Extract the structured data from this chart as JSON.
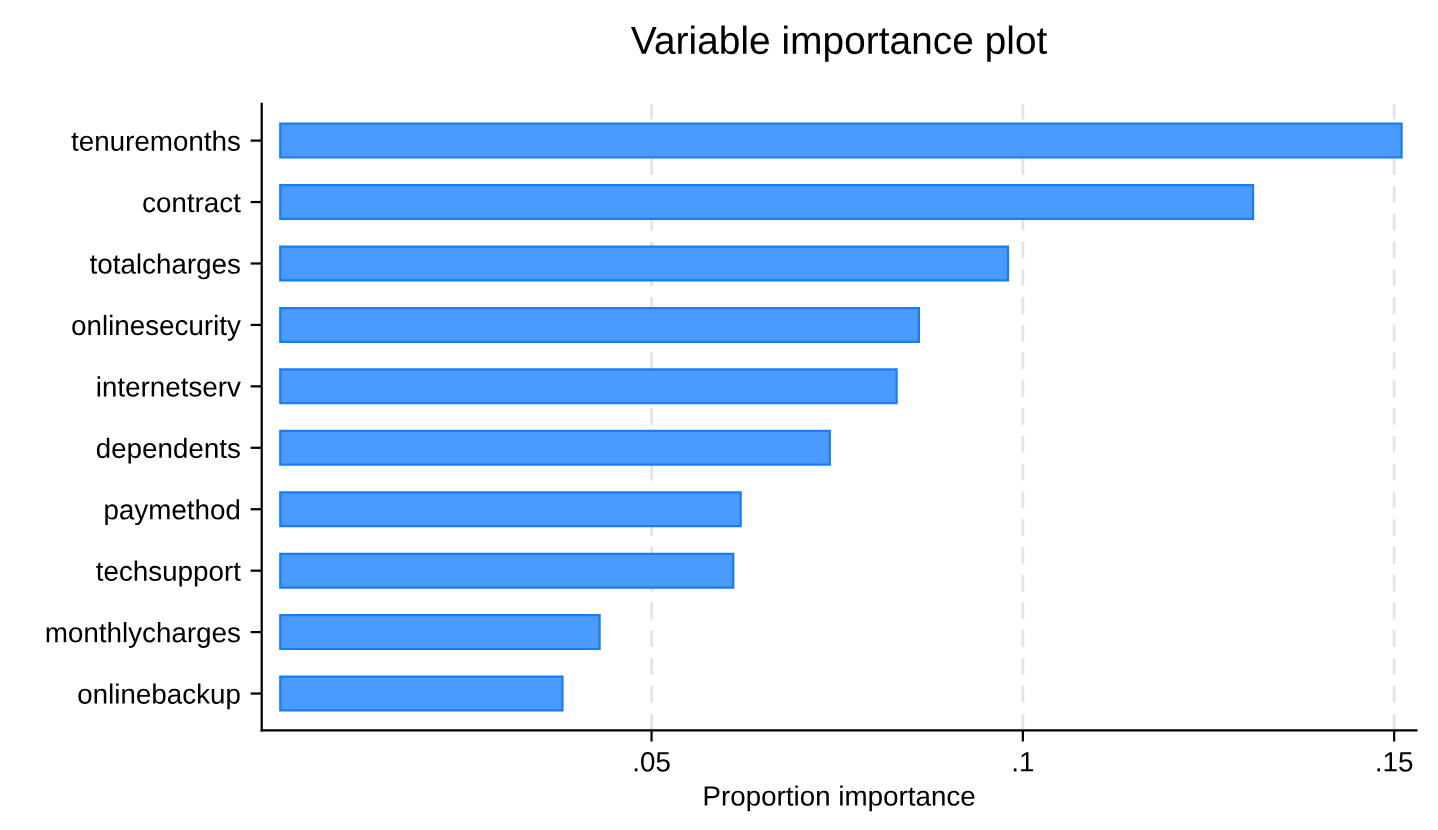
{
  "chart_data": {
    "type": "bar",
    "orientation": "horizontal",
    "title": "Variable importance plot",
    "xlabel": "Proportion importance",
    "categories": [
      "tenuremonths",
      "contract",
      "totalcharges",
      "onlinesecurity",
      "internetserv",
      "dependents",
      "paymethod",
      "techsupport",
      "monthlycharges",
      "onlinebackup"
    ],
    "values": [
      0.151,
      0.131,
      0.098,
      0.086,
      0.083,
      0.074,
      0.062,
      0.061,
      0.043,
      0.038
    ],
    "color": "#4a9bff",
    "xlim": [
      -0.0025,
      0.153
    ],
    "xticks": [
      {
        "value": 0.05,
        "label": ".05"
      },
      {
        "value": 0.1,
        "label": ".1"
      },
      {
        "value": 0.15,
        "label": ".15"
      }
    ],
    "grid": "x",
    "legend": false
  }
}
